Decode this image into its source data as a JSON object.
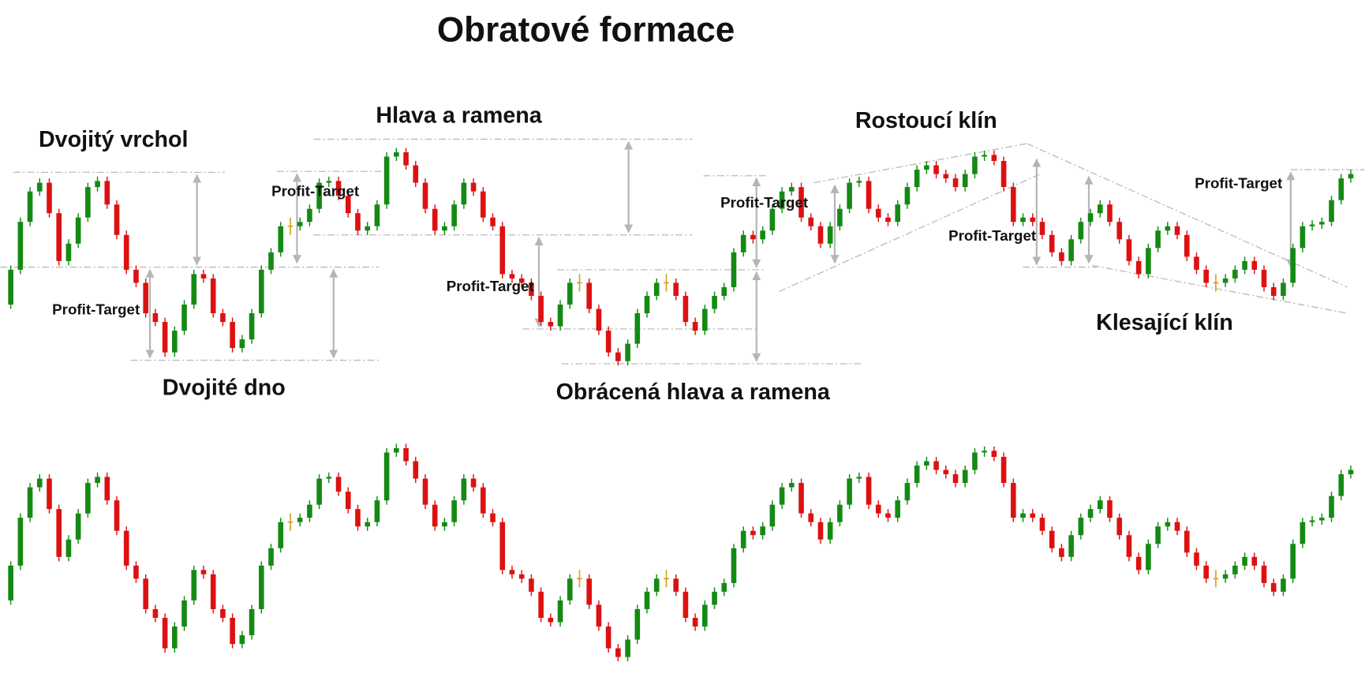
{
  "title": "Obratové formace",
  "patterns": [
    "Dvojitý vrchol",
    "Dvojité dno",
    "Hlava a ramena",
    "Obrácená hlava a ramena",
    "Rostoucí klín",
    "Klesající klín"
  ],
  "profit_targets": [
    "Profit-Target",
    "Profit-Target",
    "Profit-Target",
    "Profit-Target",
    "Profit-Target",
    "Profit-Target"
  ],
  "chart_data": {
    "type": "candlestick",
    "up_color": "#148a14",
    "down_color": "#dd1111",
    "doji_color": "#d4a020",
    "values": [
      80,
      120,
      175,
      210,
      220,
      185,
      130,
      150,
      180,
      215,
      222,
      195,
      160,
      120,
      105,
      70,
      60,
      25,
      50,
      80,
      115,
      110,
      70,
      60,
      30,
      40,
      70,
      120,
      140,
      170,
      170,
      175,
      190,
      220,
      222,
      205,
      185,
      165,
      170,
      195,
      250,
      255,
      240,
      220,
      190,
      165,
      170,
      195,
      220,
      210,
      180,
      170,
      115,
      110,
      105,
      90,
      60,
      55,
      80,
      105,
      105,
      75,
      50,
      25,
      15,
      35,
      70,
      90,
      105,
      105,
      90,
      60,
      50,
      75,
      90,
      100,
      140,
      160,
      155,
      165,
      190,
      210,
      215,
      180,
      170,
      150,
      170,
      190,
      220,
      222,
      190,
      180,
      175,
      195,
      215,
      235,
      240,
      230,
      225,
      215,
      230,
      250,
      252,
      245,
      215,
      175,
      180,
      175,
      160,
      140,
      130,
      155,
      175,
      185,
      195,
      175,
      155,
      130,
      115,
      145,
      165,
      170,
      160,
      135,
      120,
      105,
      105,
      110,
      120,
      130,
      120,
      100,
      90,
      105,
      145,
      170,
      172,
      175,
      200,
      225,
      230
    ]
  }
}
